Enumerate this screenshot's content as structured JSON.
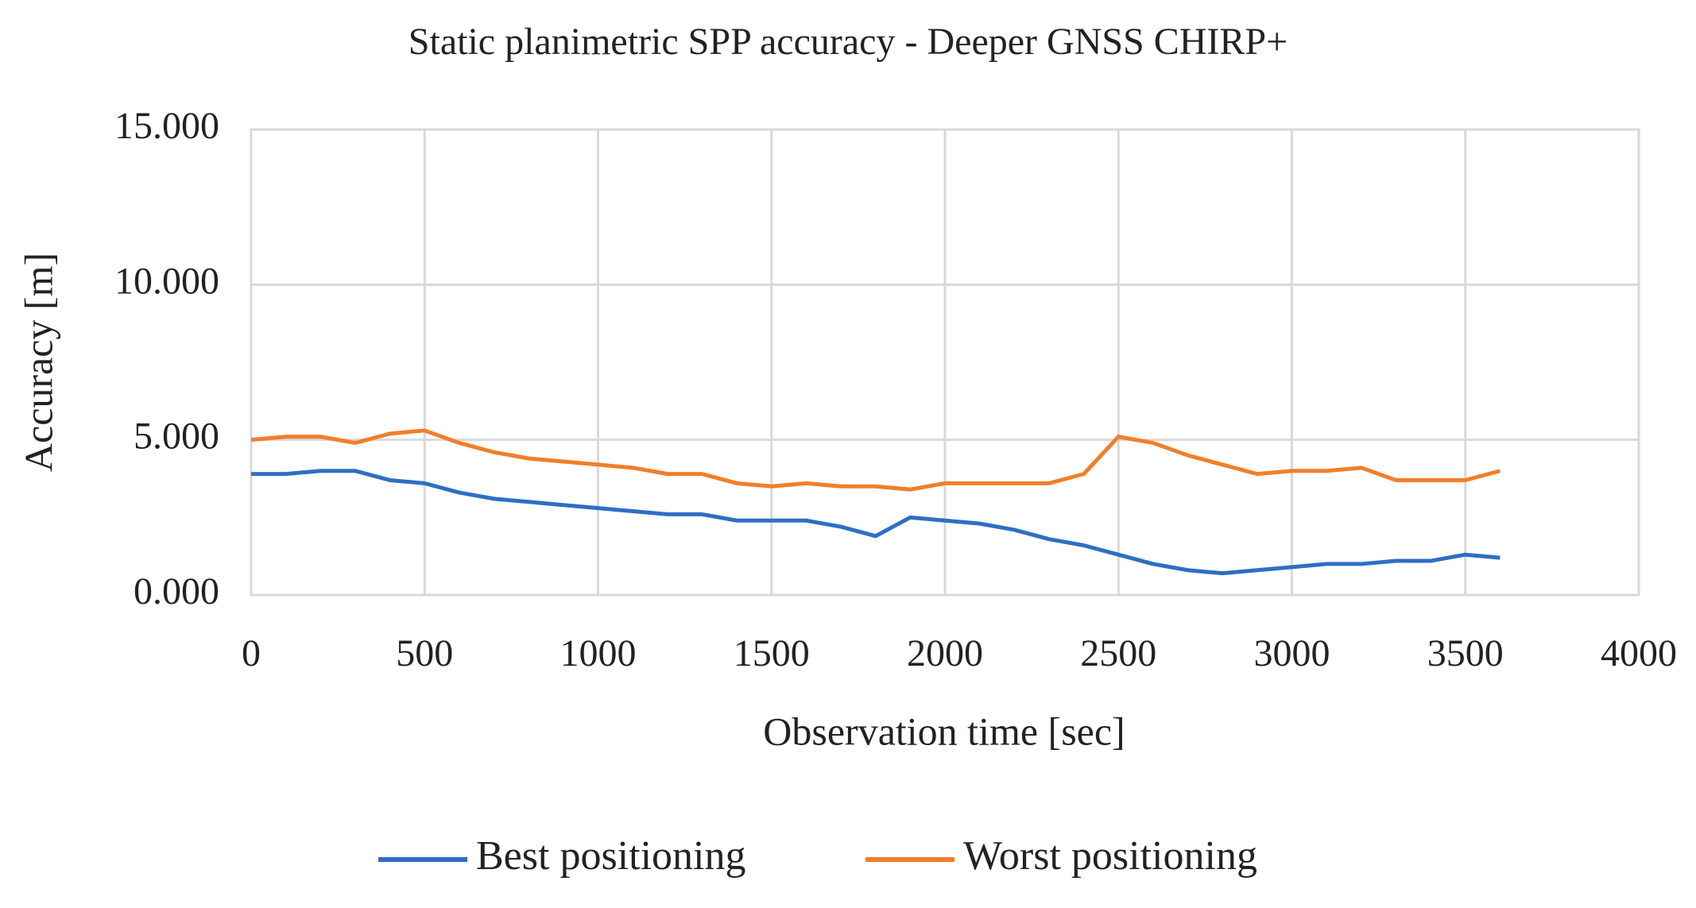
{
  "chart_data": {
    "type": "line",
    "title": "Static planimetric SPP accuracy - Deeper GNSS CHIRP+",
    "x_label": "Observation time [sec]",
    "y_label": "Accuracy [m]",
    "x": [
      0,
      100,
      200,
      300,
      400,
      500,
      600,
      700,
      800,
      900,
      1000,
      1100,
      1200,
      1300,
      1400,
      1500,
      1600,
      1700,
      1800,
      1900,
      2000,
      2100,
      2200,
      2300,
      2400,
      2500,
      2600,
      2700,
      2800,
      2900,
      3000,
      3100,
      3200,
      3300,
      3400,
      3500,
      3600
    ],
    "series": [
      {
        "name": "Best positioning",
        "color": "#2e6fc3",
        "values": [
          3.9,
          3.9,
          4.0,
          4.0,
          3.7,
          3.6,
          3.3,
          3.1,
          3.0,
          2.9,
          2.8,
          2.7,
          2.6,
          2.6,
          2.4,
          2.4,
          2.4,
          2.2,
          1.9,
          2.5,
          2.4,
          2.3,
          2.1,
          1.8,
          1.6,
          1.3,
          1.0,
          0.8,
          0.7,
          0.8,
          0.9,
          1.0,
          1.0,
          1.1,
          1.1,
          1.3,
          1.2
        ]
      },
      {
        "name": "Worst positioning",
        "color": "#f07f2a",
        "values": [
          5.0,
          5.1,
          5.1,
          4.9,
          5.2,
          5.3,
          4.9,
          4.6,
          4.4,
          4.3,
          4.2,
          4.1,
          3.9,
          3.9,
          3.6,
          3.5,
          3.6,
          3.5,
          3.5,
          3.4,
          3.6,
          3.6,
          3.6,
          3.6,
          3.9,
          5.1,
          4.9,
          4.5,
          4.2,
          3.9,
          4.0,
          4.0,
          4.1,
          3.7,
          3.7,
          3.7,
          4.0
        ]
      }
    ],
    "xlim": [
      0,
      4000
    ],
    "xticks": [
      0,
      500,
      1000,
      1500,
      2000,
      2500,
      3000,
      3500,
      4000
    ],
    "ylim": [
      0,
      15
    ],
    "yticks": [
      {
        "value": 0,
        "label": "0.000"
      },
      {
        "value": 5,
        "label": "5.000"
      },
      {
        "value": 10,
        "label": "10.000"
      },
      {
        "value": 15,
        "label": "15.000"
      }
    ],
    "grid": true,
    "legend": "bottom"
  }
}
